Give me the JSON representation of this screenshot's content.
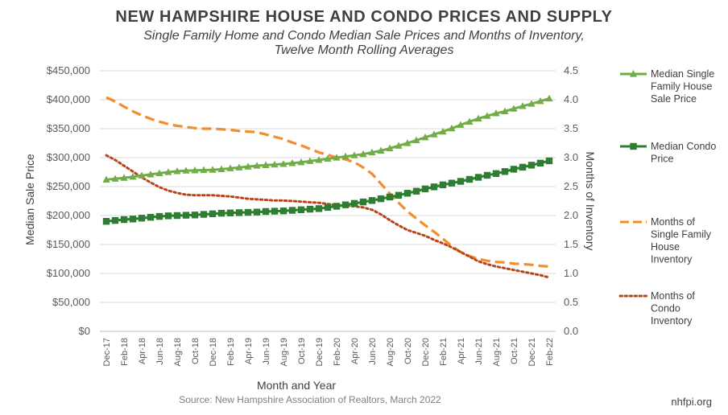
{
  "title": "NEW HAMPSHIRE HOUSE AND CONDO PRICES AND SUPPLY",
  "subtitle_line1": "Single Family Home and Condo Median Sale Prices and Months of Inventory,",
  "subtitle_line2": "Twelve Month Rolling Averages",
  "source": "Source: New Hampshire Association of Realtors, March 2022",
  "brand": "nhfpi.org",
  "chart_data": {
    "type": "line",
    "x": [
      "Dec-17",
      "Jan-18",
      "Feb-18",
      "Mar-18",
      "Apr-18",
      "May-18",
      "Jun-18",
      "Jul-18",
      "Aug-18",
      "Sep-18",
      "Oct-18",
      "Nov-18",
      "Dec-18",
      "Jan-19",
      "Feb-19",
      "Mar-19",
      "Apr-19",
      "May-19",
      "Jun-19",
      "Jul-19",
      "Aug-19",
      "Sep-19",
      "Oct-19",
      "Nov-19",
      "Dec-19",
      "Jan-20",
      "Feb-20",
      "Mar-20",
      "Apr-20",
      "May-20",
      "Jun-20",
      "Jul-20",
      "Aug-20",
      "Sep-20",
      "Oct-20",
      "Nov-20",
      "Dec-20",
      "Jan-21",
      "Feb-21",
      "Mar-21",
      "Apr-21",
      "May-21",
      "Jun-21",
      "Jul-21",
      "Aug-21",
      "Sep-21",
      "Oct-21",
      "Nov-21",
      "Dec-21",
      "Jan-22",
      "Feb-22"
    ],
    "x_tick_labels": [
      "Dec-17",
      "Feb-18",
      "Apr-18",
      "Jun-18",
      "Aug-18",
      "Oct-18",
      "Dec-18",
      "Feb-19",
      "Apr-19",
      "Jun-19",
      "Aug-19",
      "Oct-19",
      "Dec-19",
      "Feb-20",
      "Apr-20",
      "Jun-20",
      "Aug-20",
      "Oct-20",
      "Dec-20",
      "Feb-21",
      "Apr-21",
      "Jun-21",
      "Aug-21",
      "Oct-21",
      "Dec-21",
      "Feb-22"
    ],
    "xlabel": "Month and Year",
    "ylabel": "Median Sale Price",
    "y2label": "Months of Inventory",
    "ylim": [
      0,
      450000
    ],
    "y2lim": [
      0,
      4.5
    ],
    "y_tick_labels": [
      "$0",
      "$50,000",
      "$100,000",
      "$150,000",
      "$200,000",
      "$250,000",
      "$300,000",
      "$350,000",
      "$400,000",
      "$450,000"
    ],
    "y_tick_values": [
      0,
      50000,
      100000,
      150000,
      200000,
      250000,
      300000,
      350000,
      400000,
      450000
    ],
    "y2_tick_labels": [
      "0.0",
      "0.5",
      "1.0",
      "1.5",
      "2.0",
      "2.5",
      "3.0",
      "3.5",
      "4.0",
      "4.5"
    ],
    "y2_tick_values": [
      0,
      0.5,
      1,
      1.5,
      2,
      2.5,
      3,
      3.5,
      4,
      4.5
    ],
    "grid": "horizontal",
    "legend_position": "right",
    "series": [
      {
        "name": "Median Single Family House Sale Price",
        "legend_lines": [
          "Median Single",
          "Family House",
          "Sale Price"
        ],
        "axis": "left",
        "style": "solid",
        "marker": "triangle",
        "color": "#70ad47",
        "values": [
          262000,
          263500,
          265000,
          267000,
          269000,
          271000,
          273000,
          275000,
          276500,
          277500,
          278000,
          278500,
          279000,
          280000,
          281500,
          283000,
          284500,
          286000,
          287000,
          288000,
          289000,
          290500,
          292000,
          294000,
          296000,
          298000,
          300000,
          302000,
          304000,
          306000,
          309000,
          312000,
          316000,
          320500,
          325000,
          330000,
          335000,
          340000,
          345000,
          350500,
          356500,
          362000,
          367500,
          372000,
          376500,
          380000,
          384500,
          389000,
          393000,
          397500,
          402000
        ]
      },
      {
        "name": "Median Condo Price",
        "legend_lines": [
          "Median Condo",
          "Price"
        ],
        "axis": "left",
        "style": "solid",
        "marker": "square",
        "color": "#2e7d32",
        "values": [
          190000,
          191500,
          193000,
          194000,
          195500,
          197000,
          198500,
          199500,
          200000,
          200500,
          201000,
          202000,
          203000,
          204000,
          204500,
          205000,
          205500,
          206000,
          207000,
          207500,
          208000,
          209000,
          210000,
          211000,
          212000,
          214000,
          216000,
          218500,
          221000,
          223500,
          226000,
          229000,
          232000,
          235000,
          238500,
          242000,
          246000,
          249500,
          253000,
          256000,
          259000,
          262500,
          266000,
          269500,
          272500,
          276000,
          280000,
          283500,
          287000,
          290500,
          294500
        ]
      },
      {
        "name": "Months of Single Family House Inventory",
        "legend_lines": [
          "Months of",
          "Single Family",
          "House",
          "Inventory"
        ],
        "axis": "right",
        "style": "dashed",
        "marker": "none",
        "color": "#f28e2b",
        "values": [
          4.04,
          3.97,
          3.88,
          3.8,
          3.73,
          3.67,
          3.62,
          3.58,
          3.55,
          3.53,
          3.51,
          3.5,
          3.5,
          3.49,
          3.48,
          3.46,
          3.45,
          3.44,
          3.4,
          3.36,
          3.32,
          3.26,
          3.21,
          3.15,
          3.09,
          3.05,
          3.0,
          2.97,
          2.92,
          2.83,
          2.72,
          2.55,
          2.38,
          2.22,
          2.07,
          1.95,
          1.83,
          1.72,
          1.6,
          1.47,
          1.37,
          1.3,
          1.25,
          1.22,
          1.2,
          1.19,
          1.17,
          1.16,
          1.15,
          1.13,
          1.12
        ]
      },
      {
        "name": "Months of Condo Inventory",
        "legend_lines": [
          "Months of",
          "Condo",
          "Inventory"
        ],
        "axis": "right",
        "style": "dotted",
        "marker": "none",
        "color": "#b5451b",
        "values": [
          3.04,
          2.96,
          2.86,
          2.76,
          2.66,
          2.57,
          2.49,
          2.43,
          2.39,
          2.36,
          2.35,
          2.35,
          2.35,
          2.34,
          2.33,
          2.31,
          2.29,
          2.28,
          2.27,
          2.26,
          2.26,
          2.25,
          2.24,
          2.23,
          2.22,
          2.2,
          2.18,
          2.17,
          2.16,
          2.14,
          2.1,
          2.02,
          1.92,
          1.83,
          1.75,
          1.7,
          1.65,
          1.58,
          1.52,
          1.45,
          1.37,
          1.29,
          1.21,
          1.16,
          1.12,
          1.09,
          1.06,
          1.03,
          1.0,
          0.97,
          0.93
        ]
      }
    ]
  }
}
